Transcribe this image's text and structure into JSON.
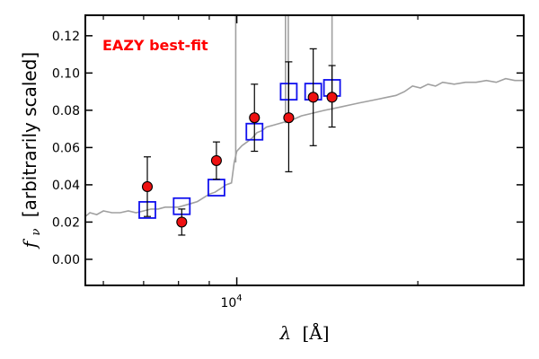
{
  "chart_data": {
    "type": "scatter",
    "annotation": "EAZY best-fit",
    "xlabel_symbol": "λ",
    "xlabel_unit": "[Å]",
    "ylabel_symbol": "f",
    "ylabel_subscript": "ν",
    "ylabel_text": "[arbitrarily scaled]",
    "x_scale": "log",
    "xlim": [
      5600,
      30000
    ],
    "ylim": [
      -0.014,
      0.131
    ],
    "x_ticks": [
      {
        "value": 10000,
        "base": "10",
        "exp": "4"
      }
    ],
    "y_ticks": [
      0.0,
      0.02,
      0.04,
      0.06,
      0.08,
      0.1,
      0.12
    ],
    "y_tick_labels": [
      "0.00",
      "0.02",
      "0.04",
      "0.06",
      "0.08",
      "0.10",
      "0.12"
    ],
    "colors": {
      "sed_line": "#a0a0a0",
      "observed_fill": "#ee1111",
      "model_box": "#1111ee",
      "annotation": "#ff0000"
    },
    "observed": [
      {
        "x": 7100,
        "y": 0.039,
        "yerr_low": 0.023,
        "yerr_high": 0.055
      },
      {
        "x": 8100,
        "y": 0.02,
        "yerr_low": 0.013,
        "yerr_high": 0.027
      },
      {
        "x": 9250,
        "y": 0.053,
        "yerr_low": 0.043,
        "yerr_high": 0.063
      },
      {
        "x": 10700,
        "y": 0.076,
        "yerr_low": 0.058,
        "yerr_high": 0.094
      },
      {
        "x": 12200,
        "y": 0.076,
        "yerr_low": 0.047,
        "yerr_high": 0.106
      },
      {
        "x": 13400,
        "y": 0.087,
        "yerr_low": 0.061,
        "yerr_high": 0.113
      },
      {
        "x": 14400,
        "y": 0.087,
        "yerr_low": 0.071,
        "yerr_high": 0.104
      }
    ],
    "model_photometry": [
      {
        "x": 7100,
        "y": 0.0265
      },
      {
        "x": 8100,
        "y": 0.0285
      },
      {
        "x": 9250,
        "y": 0.0385
      },
      {
        "x": 10700,
        "y": 0.0685
      },
      {
        "x": 12200,
        "y": 0.09
      },
      {
        "x": 13400,
        "y": 0.09
      },
      {
        "x": 14400,
        "y": 0.092
      }
    ],
    "sed_curve": [
      [
        5600,
        0.023
      ],
      [
        5700,
        0.025
      ],
      [
        5850,
        0.024
      ],
      [
        6000,
        0.026
      ],
      [
        6200,
        0.025
      ],
      [
        6400,
        0.025
      ],
      [
        6600,
        0.026
      ],
      [
        6800,
        0.025
      ],
      [
        7000,
        0.026
      ],
      [
        7200,
        0.027
      ],
      [
        7400,
        0.027
      ],
      [
        7600,
        0.028
      ],
      [
        7800,
        0.028
      ],
      [
        8000,
        0.028
      ],
      [
        8200,
        0.029
      ],
      [
        8400,
        0.03
      ],
      [
        8600,
        0.031
      ],
      [
        8800,
        0.033
      ],
      [
        9000,
        0.035
      ],
      [
        9200,
        0.036
      ],
      [
        9400,
        0.038
      ],
      [
        9600,
        0.04
      ],
      [
        9800,
        0.041
      ],
      [
        9900,
        0.052
      ],
      [
        10000,
        0.058
      ],
      [
        10200,
        0.061
      ],
      [
        10400,
        0.063
      ],
      [
        10600,
        0.065
      ],
      [
        10800,
        0.068
      ],
      [
        11000,
        0.069
      ],
      [
        11200,
        0.071
      ],
      [
        11500,
        0.072
      ],
      [
        11800,
        0.073
      ],
      [
        12100,
        0.074
      ],
      [
        12400,
        0.075
      ],
      [
        12800,
        0.077
      ],
      [
        13200,
        0.078
      ],
      [
        13600,
        0.079
      ],
      [
        14000,
        0.08
      ],
      [
        14500,
        0.081
      ],
      [
        15000,
        0.082
      ],
      [
        15500,
        0.083
      ],
      [
        16000,
        0.084
      ],
      [
        16600,
        0.085
      ],
      [
        17200,
        0.086
      ],
      [
        17800,
        0.087
      ],
      [
        18400,
        0.088
      ],
      [
        19000,
        0.09
      ],
      [
        19600,
        0.093
      ],
      [
        20200,
        0.092
      ],
      [
        20800,
        0.094
      ],
      [
        21400,
        0.093
      ],
      [
        22000,
        0.095
      ],
      [
        23000,
        0.094
      ],
      [
        24000,
        0.095
      ],
      [
        25000,
        0.095
      ],
      [
        26000,
        0.096
      ],
      [
        27000,
        0.095
      ],
      [
        28000,
        0.097
      ],
      [
        29000,
        0.096
      ],
      [
        30000,
        0.096
      ]
    ],
    "emission_lines": [
      {
        "x": 9960,
        "y": 0.131
      },
      {
        "x": 12050,
        "y": 0.131
      },
      {
        "x": 12180,
        "y": 0.131
      },
      {
        "x": 14400,
        "y": 0.131
      }
    ]
  }
}
